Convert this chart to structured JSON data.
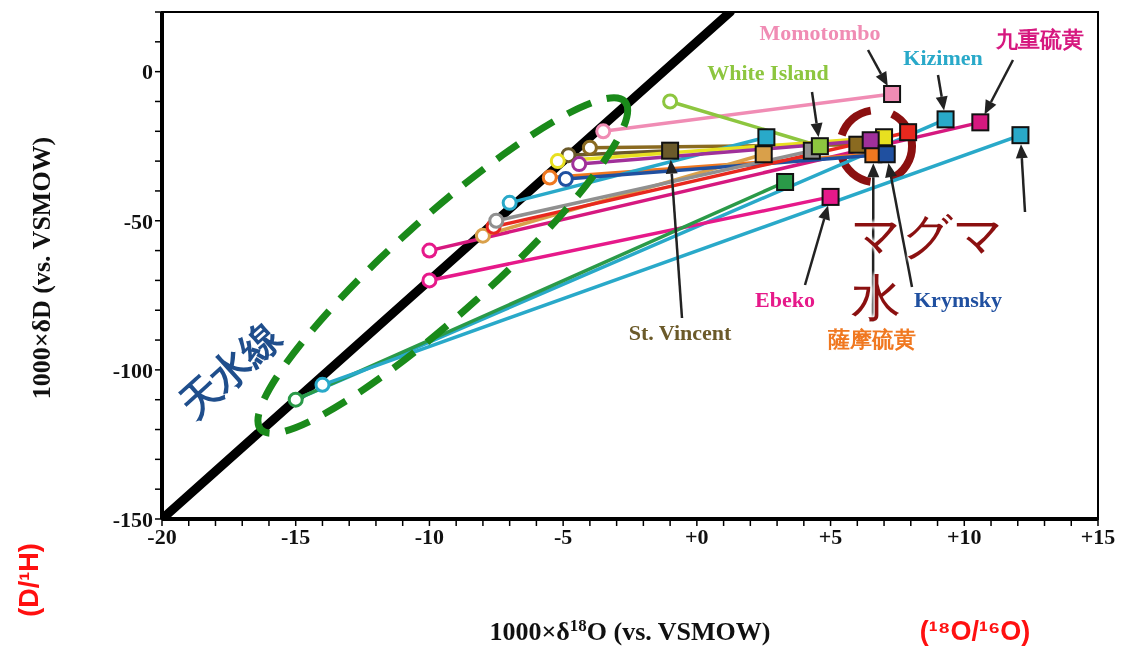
{
  "chart_data": {
    "type": "scatter",
    "xlabel": "1000×δ$^{18}$O (vs. VSMOW)",
    "ylabel": "1000×δD (vs. VSMOW)",
    "xlim": [
      -20,
      15
    ],
    "ylim": [
      -150,
      20
    ],
    "xticks": [
      {
        "value": -20,
        "label": "-20"
      },
      {
        "value": -19,
        "label": null
      },
      {
        "value": -18,
        "label": null
      },
      {
        "value": -17,
        "label": null
      },
      {
        "value": -16,
        "label": null
      },
      {
        "value": -15,
        "label": "-15"
      },
      {
        "value": -14,
        "label": null
      },
      {
        "value": -13,
        "label": null
      },
      {
        "value": -12,
        "label": null
      },
      {
        "value": -11,
        "label": null
      },
      {
        "value": -10,
        "label": "-10"
      },
      {
        "value": -9,
        "label": null
      },
      {
        "value": -8,
        "label": null
      },
      {
        "value": -7,
        "label": null
      },
      {
        "value": -6,
        "label": null
      },
      {
        "value": -5,
        "label": "-5"
      },
      {
        "value": -4,
        "label": null
      },
      {
        "value": -3,
        "label": null
      },
      {
        "value": -2,
        "label": null
      },
      {
        "value": -1,
        "label": null
      },
      {
        "value": 0,
        "label": "+0"
      },
      {
        "value": 1,
        "label": null
      },
      {
        "value": 2,
        "label": null
      },
      {
        "value": 3,
        "label": null
      },
      {
        "value": 4,
        "label": null
      },
      {
        "value": 5,
        "label": "+5"
      },
      {
        "value": 6,
        "label": null
      },
      {
        "value": 7,
        "label": null
      },
      {
        "value": 8,
        "label": null
      },
      {
        "value": 9,
        "label": null
      },
      {
        "value": 10,
        "label": "+10"
      },
      {
        "value": 11,
        "label": null
      },
      {
        "value": 12,
        "label": null
      },
      {
        "value": 13,
        "label": null
      },
      {
        "value": 14,
        "label": null
      },
      {
        "value": 15,
        "label": "+15"
      }
    ],
    "yticks": [
      -150,
      {
        "value": -140,
        "label": null
      },
      {
        "value": -130,
        "label": null
      },
      {
        "value": -120,
        "label": null
      },
      {
        "value": -110,
        "label": null
      },
      -100,
      {
        "value": -90,
        "label": null
      },
      {
        "value": -80,
        "label": null
      },
      {
        "value": -70,
        "label": null
      },
      {
        "value": -60,
        "label": null
      },
      -50,
      {
        "value": -40,
        "label": null
      },
      {
        "value": -30,
        "label": null
      },
      {
        "value": -20,
        "label": null
      },
      {
        "value": -10,
        "label": null
      },
      0,
      {
        "value": 10,
        "label": null
      },
      {
        "value": 20,
        "label": null
      }
    ],
    "annotations": [
      "天水線",
      {
        "text": "マグマ水",
        "x": 6.7,
        "y": -25
      },
      "(¹⁸O/¹⁶O)",
      "(D/¹H)"
    ],
    "series": [
      {
        "type": "line",
        "color": "#000000",
        "x": [
          -20,
          1.25
        ],
        "values": [
          -150,
          20
        ]
      },
      {
        "type": "line",
        "name": "Momotombo",
        "color": "#f08cb4",
        "x": [
          -3.5,
          7.3
        ],
        "values": [
          -20,
          -7.5
        ]
      },
      {
        "type": "line",
        "name": "White Island",
        "color": "#8dc63f",
        "x": [
          -1,
          4.6
        ],
        "values": [
          -10,
          -25
        ]
      },
      {
        "type": "line",
        "name": "Kizimen",
        "color": "#29a9c9",
        "x": [
          -15,
          9.3
        ],
        "values": [
          -110,
          -16
        ]
      },
      {
        "type": "line",
        "name": "九重硫黄",
        "color": "#d6187f",
        "x": [
          -10,
          10.6
        ],
        "values": [
          -60,
          -17
        ]
      },
      {
        "type": "line",
        "name": "Ebeko",
        "color": "#e6198a",
        "x": [
          -10,
          5
        ],
        "values": [
          -70,
          -42
        ]
      },
      {
        "type": "line",
        "name": "St. Vincent",
        "color": "#6b5a2a",
        "x": [
          -4.8,
          -1
        ],
        "values": [
          -28,
          -26.5
        ]
      },
      {
        "type": "line",
        "color": "#8a6a20",
        "x": [
          -4,
          6
        ],
        "values": [
          -25.5,
          -24.5
        ]
      },
      {
        "type": "line",
        "name": "薩摩硫黄",
        "color": "#f07820",
        "x": [
          -5.5,
          6.6
        ],
        "values": [
          -35.5,
          -27.7
        ]
      },
      {
        "type": "line",
        "color": "#d9a04a",
        "x": [
          -8,
          2.5
        ],
        "values": [
          -55,
          -27.7
        ]
      },
      {
        "type": "line",
        "color": "#29a9c9",
        "x": [
          -7,
          2.6
        ],
        "values": [
          -44,
          -22
        ]
      },
      {
        "type": "line",
        "color": "#2a9a48",
        "x": [
          -15,
          3.3
        ],
        "values": [
          -110,
          -37
        ]
      },
      {
        "type": "line",
        "color": "#29a9c9",
        "x": [
          -14,
          12.1
        ],
        "values": [
          -105,
          -21.3
        ]
      },
      {
        "type": "line",
        "color": "#e8e020",
        "x": [
          -5.2,
          7
        ],
        "values": [
          -30,
          -22
        ]
      },
      {
        "type": "line",
        "color": "#a0309a",
        "x": [
          -4.4,
          6.5
        ],
        "values": [
          -31,
          -23
        ]
      },
      {
        "type": "line",
        "name": "Krymsky",
        "color": "#2050a0",
        "x": [
          -4.9,
          7.1
        ],
        "values": [
          -36,
          -27.7
        ]
      },
      {
        "type": "line",
        "color": "#e8281e",
        "x": [
          -7.6,
          7.9
        ],
        "values": [
          -52,
          -20.3
        ]
      },
      {
        "type": "line",
        "color": "#909090",
        "x": [
          -7.5,
          4.3
        ],
        "values": [
          -50,
          -26.5
        ]
      },
      {
        "marker": "circle",
        "x": [
          -3.5,
          -1,
          -15,
          -10,
          -10,
          -4.8,
          -4,
          -5.5,
          -8,
          -7,
          -14,
          -5.2,
          -4.4,
          -4.9,
          -7.6,
          -7.5
        ],
        "values": [
          -20,
          -10,
          -110,
          -60,
          -70,
          -28,
          -25.5,
          -35.5,
          -55,
          -44,
          -105,
          -30,
          -31,
          -36,
          -52,
          -50
        ],
        "colors": [
          "#f08cb4",
          "#8dc63f",
          "#2a9a48",
          "#e6198a",
          "#e6198a",
          "#6b5a2a",
          "#8a6a20",
          "#f07820",
          "#d9a04a",
          "#29a9c9",
          "#29a9c9",
          "#e8e020",
          "#a0309a",
          "#2050a0",
          "#e8281e",
          "#909090"
        ]
      },
      {
        "marker": "square",
        "x": [
          7.3,
          9.3,
          10.6,
          5,
          -1,
          6,
          6.6,
          2.5,
          2.6,
          3.3,
          12.1,
          7,
          6.5,
          7.1,
          7.9,
          4.3,
          4.6
        ],
        "values": [
          -7.5,
          -16,
          -17,
          -42,
          -26.5,
          -24.5,
          -27.7,
          -27.7,
          -22,
          -37,
          -21.3,
          -22,
          -23,
          -27.7,
          -20.3,
          -26.5,
          -25
        ],
        "colors": [
          "#f08cb4",
          "#29a9c9",
          "#d6187f",
          "#e6198a",
          "#6b5a2a",
          "#8a6a20",
          "#f07820",
          "#d9a04a",
          "#29a9c9",
          "#2a9a48",
          "#29a9c9",
          "#e8e020",
          "#a0309a",
          "#2050a0",
          "#e8281e",
          "#909090",
          "#8dc63f"
        ]
      }
    ]
  }
}
